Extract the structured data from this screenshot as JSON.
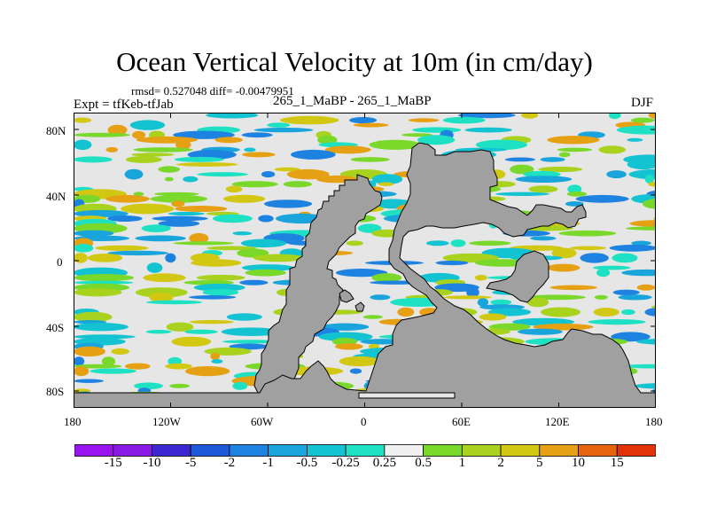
{
  "title": "Ocean Vertical Velocity at 10m (in cm/day)",
  "stats": "rmsd= 0.527048 diff= -0.00479951",
  "expt": "Expt = tfKeb-tfJab",
  "runs": "265_1_MaBP - 265_1_MaBP",
  "season": "DJF",
  "map": {
    "lat_labels": [
      "80N",
      "40N",
      "0",
      "40S",
      "80S"
    ],
    "lon_labels": [
      "180",
      "120W",
      "60W",
      "0",
      "60E",
      "120E",
      "180"
    ],
    "land_color": "#a0a0a0",
    "ocean_background": "#e6e6e6"
  },
  "colorbar": {
    "labels": [
      "-15",
      "-10",
      "-5",
      "-2",
      "-1",
      "-0.5",
      "-0.25",
      "0.25",
      "0.5",
      "1",
      "2",
      "5",
      "10",
      "15"
    ],
    "colors": [
      "#8a1ae6",
      "#3c28d2",
      "#1e5ad7",
      "#1e82e1",
      "#19a5dc",
      "#14c3d2",
      "#1ee1c3",
      "#f0f0f0",
      "#7ad82a",
      "#a8d21e",
      "#d2c814",
      "#e6a014",
      "#e6640f",
      "#e1320a"
    ]
  },
  "colors": {
    "land": "#a0a0a0",
    "background": "#e6e6e6",
    "coast": "#000000"
  }
}
